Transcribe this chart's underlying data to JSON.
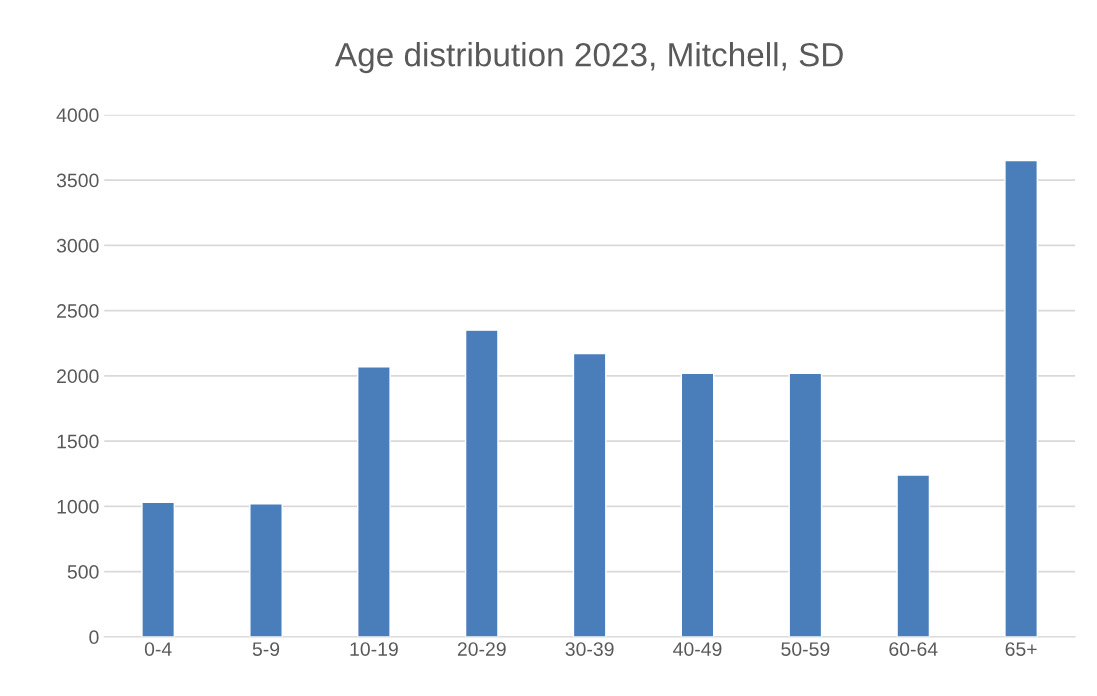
{
  "chart_data": {
    "type": "bar",
    "title": "Age distribution 2023, Mitchell, SD",
    "categories": [
      "0-4",
      "5-9",
      "10-19",
      "20-29",
      "30-39",
      "40-49",
      "50-59",
      "60-64",
      "65+"
    ],
    "values": [
      1030,
      1020,
      2070,
      2350,
      2170,
      2020,
      2020,
      1240,
      3650
    ],
    "color": "#4a7ebb",
    "ylim": [
      0,
      4000
    ],
    "yticks": [
      0,
      500,
      1000,
      1500,
      2000,
      2500,
      3000,
      3500,
      4000
    ],
    "grid": "y",
    "legend": false
  }
}
